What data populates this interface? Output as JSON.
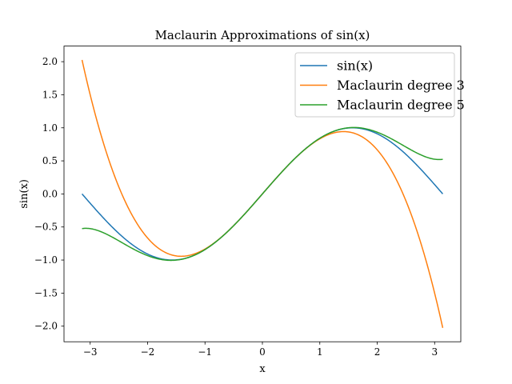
{
  "chart_data": {
    "type": "line",
    "title": "Maclaurin Approximations of sin(x)",
    "xlabel": "x",
    "ylabel": "sin(x)",
    "xlim": [
      -3.456,
      3.456
    ],
    "ylim": [
      -2.236,
      2.236
    ],
    "xticks": [
      -3,
      -2,
      -1,
      0,
      1,
      2,
      3
    ],
    "xtick_labels": [
      "−3",
      "−2",
      "−1",
      "0",
      "1",
      "2",
      "3"
    ],
    "yticks": [
      -2.0,
      -1.5,
      -1.0,
      -0.5,
      0.0,
      0.5,
      1.0,
      1.5,
      2.0
    ],
    "ytick_labels": [
      "−2.0",
      "−1.5",
      "−1.0",
      "−0.5",
      "0.0",
      "0.5",
      "1.0",
      "1.5",
      "2.0"
    ],
    "grid": false,
    "legend_position": "top-right",
    "x_domain": [
      -3.14159,
      3.14159
    ],
    "series": [
      {
        "name": "sin(x)",
        "color": "#1f77b4",
        "function": "sin(x)"
      },
      {
        "name": "Maclaurin degree 3",
        "color": "#ff7f0e",
        "function": "x - x^3/6"
      },
      {
        "name": "Maclaurin degree 5",
        "color": "#2ca02c",
        "function": "x - x^3/6 + x^5/120"
      }
    ],
    "sample_points": {
      "x": [
        -3.14,
        -2,
        -1,
        0,
        1,
        2,
        3.14
      ],
      "sin(x)": [
        0.0,
        -0.909,
        -0.841,
        0.0,
        0.841,
        0.909,
        0.0
      ],
      "Maclaurin degree 3": [
        2.026,
        -0.667,
        -0.833,
        0.0,
        0.833,
        0.667,
        -2.026
      ],
      "Maclaurin degree 5": [
        -0.524,
        -0.933,
        -0.842,
        0.0,
        0.842,
        0.933,
        0.524
      ]
    }
  }
}
